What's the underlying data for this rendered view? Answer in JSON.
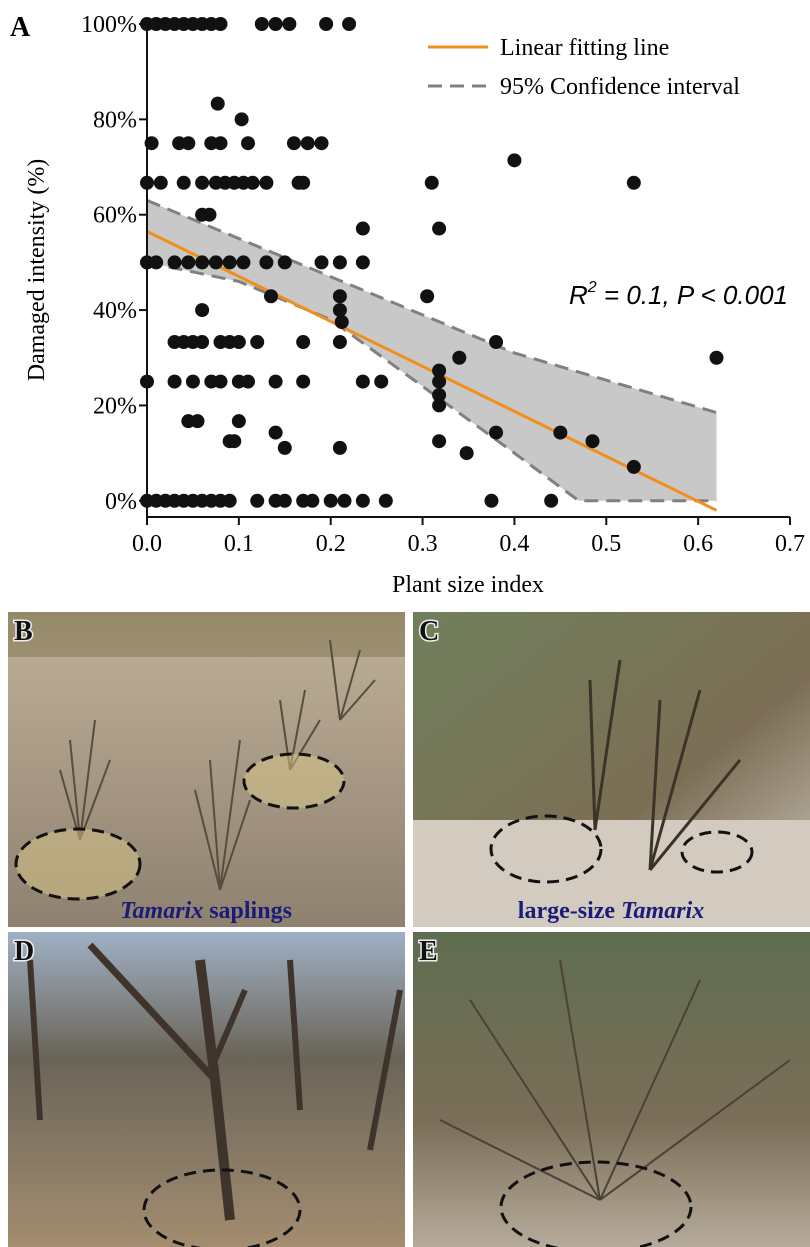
{
  "chart_data": {
    "type": "scatter",
    "panel_label": "A",
    "xlabel": "Plant size index",
    "ylabel": "Damaged intensity (%)",
    "xlim": [
      0,
      0.7
    ],
    "ylim": [
      -3.4,
      100
    ],
    "xticks": [
      {
        "value": 0,
        "label": "0.0"
      },
      0.1,
      0.2,
      0.3,
      0.4,
      0.5,
      0.6,
      0.7
    ],
    "yticks": [
      {
        "value": 0,
        "label": "0%"
      },
      {
        "value": 20,
        "label": "20%"
      },
      {
        "value": 40,
        "label": "40%"
      },
      {
        "value": 60,
        "label": "60%"
      },
      {
        "value": 80,
        "label": "80%"
      },
      {
        "value": 100,
        "label": "100%"
      }
    ],
    "annotation": [
      "R",
      "2",
      " = 0.1, P < 0.001"
    ],
    "series": [
      {
        "color": "#111111",
        "x": [
          0.0,
          0.01,
          0.02,
          0.03,
          0.04,
          0.05,
          0.06,
          0.07,
          0.08,
          0.125,
          0.14,
          0.155,
          0.195,
          0.22,
          0.077,
          0.103,
          0.005,
          0.035,
          0.045,
          0.07,
          0.08,
          0.11,
          0.16,
          0.175,
          0.19,
          0.4,
          0.0,
          0.015,
          0.04,
          0.06,
          0.075,
          0.085,
          0.095,
          0.105,
          0.115,
          0.13,
          0.165,
          0.17,
          0.31,
          0.53,
          0.06,
          0.068,
          0.235,
          0.318,
          0.0,
          0.01,
          0.03,
          0.045,
          0.06,
          0.075,
          0.09,
          0.105,
          0.13,
          0.15,
          0.19,
          0.21,
          0.235,
          0.135,
          0.21,
          0.305,
          0.06,
          0.21,
          0.212,
          0.03,
          0.04,
          0.05,
          0.06,
          0.08,
          0.09,
          0.1,
          0.12,
          0.17,
          0.21,
          0.38,
          0.34,
          0.62,
          0.318,
          0.0,
          0.03,
          0.05,
          0.07,
          0.08,
          0.1,
          0.11,
          0.14,
          0.17,
          0.235,
          0.255,
          0.318,
          0.318,
          0.318,
          0.045,
          0.055,
          0.1,
          0.14,
          0.38,
          0.45,
          0.09,
          0.095,
          0.318,
          0.485,
          0.15,
          0.21,
          0.348,
          0.53,
          0.0,
          0.01,
          0.02,
          0.03,
          0.04,
          0.05,
          0.06,
          0.07,
          0.08,
          0.09,
          0.12,
          0.14,
          0.15,
          0.17,
          0.18,
          0.2,
          0.215,
          0.235,
          0.26,
          0.375,
          0.44
        ],
        "values": [
          100,
          100,
          100,
          100,
          100,
          100,
          100,
          100,
          100,
          100,
          100,
          100,
          100,
          100,
          83.3,
          80,
          75,
          75,
          75,
          75,
          75,
          75,
          75,
          75,
          75,
          71.4,
          66.7,
          66.7,
          66.7,
          66.7,
          66.7,
          66.7,
          66.7,
          66.7,
          66.7,
          66.7,
          66.7,
          66.7,
          66.7,
          66.7,
          60,
          60,
          57.1,
          57.1,
          50,
          50,
          50,
          50,
          50,
          50,
          50,
          50,
          50,
          50,
          50,
          50,
          50,
          42.9,
          42.9,
          42.9,
          40,
          40,
          37.5,
          33.3,
          33.3,
          33.3,
          33.3,
          33.3,
          33.3,
          33.3,
          33.3,
          33.3,
          33.3,
          33.3,
          30,
          30,
          27.3,
          25,
          25,
          25,
          25,
          25,
          25,
          25,
          25,
          25,
          25,
          25,
          25,
          22.2,
          20,
          16.7,
          16.7,
          16.7,
          14.3,
          14.3,
          14.3,
          12.5,
          12.5,
          12.5,
          12.5,
          11.1,
          11.1,
          10,
          7.1,
          0,
          0,
          0,
          0,
          0,
          0,
          0,
          0,
          0,
          0,
          0,
          0,
          0,
          0,
          0,
          0,
          0,
          0,
          0,
          0,
          0
        ]
      }
    ],
    "fit": {
      "name": "Linear fitting line",
      "color": "#f28e1c",
      "x": [
        0,
        0.62
      ],
      "values": [
        56.5,
        -2
      ]
    },
    "band": {
      "name": "95% Confidence interval",
      "color": "#c8c8c8",
      "line_color": "#808080",
      "x": [
        0,
        0.1,
        0.2,
        0.3,
        0.4,
        0.47,
        0.62
      ],
      "upper": [
        63,
        55,
        47,
        39,
        31,
        27,
        18.5
      ],
      "lower": [
        50,
        46,
        38,
        24,
        10,
        0,
        0
      ]
    }
  },
  "panels": [
    {
      "label": "B",
      "caption": [
        "Tamarix",
        " saplings"
      ]
    },
    {
      "label": "C",
      "caption": [
        "large-size ",
        "Tamarix"
      ]
    },
    {
      "label": "D"
    },
    {
      "label": "E"
    }
  ]
}
